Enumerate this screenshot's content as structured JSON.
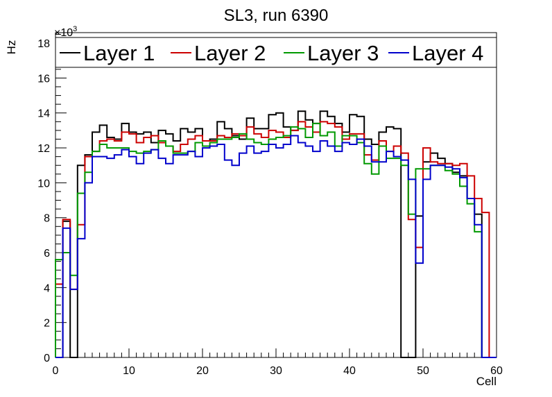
{
  "chart_data": {
    "type": "step-histogram",
    "title": "SL3, run 6390",
    "xlabel": "Cell",
    "ylabel": "Hz",
    "y_multiplier": "×10",
    "y_multiplier_exp": "3",
    "xlim": [
      0,
      60
    ],
    "ylim": [
      0,
      18.6
    ],
    "x_ticks": [
      0,
      10,
      20,
      30,
      40,
      50,
      60
    ],
    "y_ticks": [
      0,
      2,
      4,
      6,
      8,
      10,
      12,
      14,
      16,
      18
    ],
    "legend_position": "top, full width",
    "series": [
      {
        "name": "Layer 1",
        "color": "#000000",
        "values": [
          0,
          7.8,
          0,
          11.0,
          11.6,
          12.9,
          13.3,
          12.6,
          12.5,
          13.4,
          12.9,
          12.8,
          12.9,
          12.3,
          13.0,
          12.8,
          12.4,
          13.1,
          12.9,
          13.1,
          12.4,
          12.5,
          13.5,
          13.1,
          12.7,
          12.5,
          13.7,
          13.1,
          13.1,
          13.9,
          14.0,
          13.2,
          13.0,
          14.1,
          13.6,
          13.4,
          14.1,
          13.8,
          13.4,
          12.9,
          13.9,
          13.8,
          12.5,
          12.2,
          12.9,
          13.2,
          13.1,
          0,
          0,
          8.1,
          11.2,
          11.7,
          11.4,
          11.1,
          10.6,
          10.4,
          9.1,
          8.2,
          0,
          0
        ]
      },
      {
        "name": "Layer 2",
        "color": "#cc0000",
        "values": [
          4.2,
          7.9,
          3.9,
          7.6,
          11.5,
          11.8,
          12.4,
          12.5,
          12.4,
          12.9,
          12.8,
          12.3,
          12.6,
          12.7,
          12.3,
          12.1,
          11.8,
          12.2,
          12.5,
          12.7,
          12.4,
          12.4,
          12.7,
          12.6,
          12.8,
          12.7,
          13.2,
          12.8,
          12.6,
          13.0,
          12.9,
          12.6,
          13.0,
          13.5,
          13.2,
          12.9,
          13.5,
          13.4,
          13.2,
          12.5,
          12.8,
          12.8,
          11.6,
          11.3,
          12.4,
          11.8,
          12.1,
          11.7,
          7.9,
          6.3,
          12.0,
          11.2,
          11.1,
          11.1,
          11.0,
          11.1,
          10.4,
          9.1,
          8.3,
          0
        ]
      },
      {
        "name": "Layer 3",
        "color": "#009900",
        "values": [
          5.6,
          6.0,
          4.7,
          9.4,
          10.6,
          11.8,
          12.2,
          12.0,
          12.0,
          12.0,
          11.8,
          11.7,
          11.8,
          11.9,
          12.4,
          12.1,
          11.7,
          11.7,
          11.8,
          12.3,
          12.1,
          12.3,
          12.5,
          12.5,
          12.6,
          12.8,
          12.5,
          12.3,
          12.2,
          12.5,
          12.6,
          12.7,
          13.2,
          13.1,
          12.6,
          13.4,
          12.7,
          12.9,
          12.1,
          12.7,
          12.7,
          12.3,
          11.1,
          10.5,
          12.1,
          11.4,
          11.4,
          11.0,
          8.2,
          10.8,
          10.8,
          11.0,
          11.0,
          10.7,
          10.5,
          9.8,
          8.8,
          7.2,
          0,
          0
        ]
      },
      {
        "name": "Layer 4",
        "color": "#0000cc",
        "values": [
          0,
          7.4,
          3.9,
          6.8,
          10.0,
          11.5,
          11.5,
          11.4,
          11.6,
          11.9,
          11.5,
          11.1,
          11.7,
          11.9,
          11.4,
          11.1,
          11.6,
          11.6,
          11.8,
          11.5,
          12.0,
          12.1,
          12.2,
          11.3,
          11.0,
          11.7,
          12.1,
          11.7,
          11.8,
          12.2,
          12.0,
          12.2,
          12.7,
          12.3,
          12.1,
          11.8,
          12.4,
          12.1,
          11.8,
          12.3,
          12.2,
          12.5,
          12.1,
          11.2,
          11.2,
          11.8,
          11.5,
          11.3,
          10.2,
          5.4,
          10.2,
          11.0,
          11.0,
          10.9,
          10.8,
          10.3,
          9.1,
          7.6,
          0,
          0
        ]
      }
    ]
  }
}
